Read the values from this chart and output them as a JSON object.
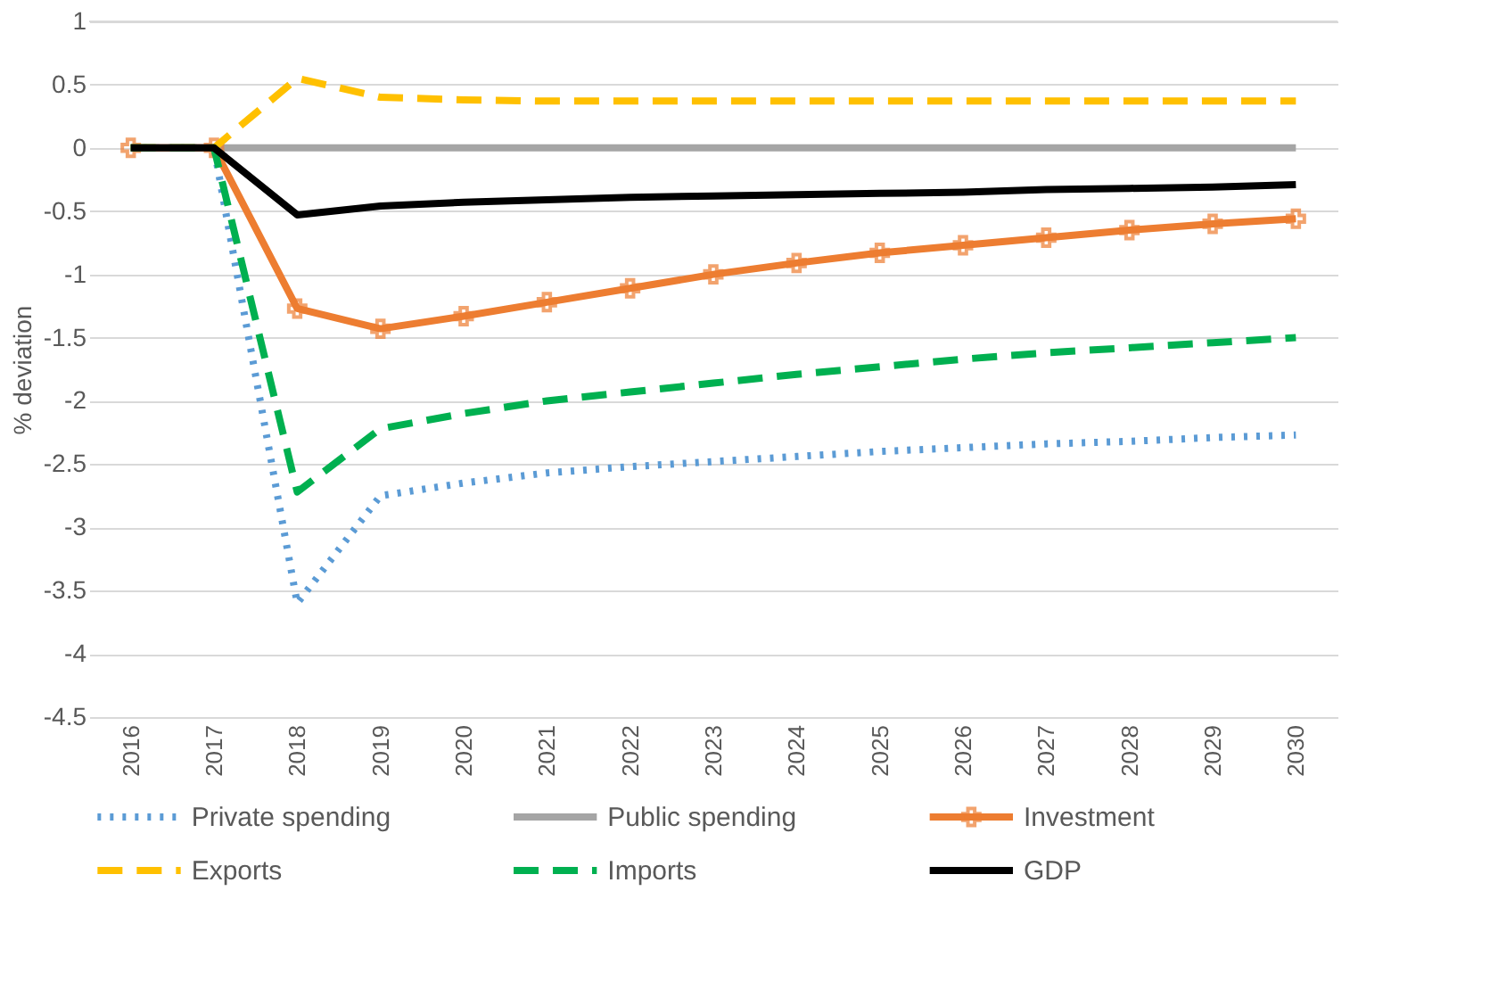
{
  "chart_data": {
    "type": "line",
    "ylabel": "% deviation",
    "categories": [
      "2016",
      "2017",
      "2018",
      "2019",
      "2020",
      "2021",
      "2022",
      "2023",
      "2024",
      "2025",
      "2026",
      "2027",
      "2028",
      "2029",
      "2030"
    ],
    "series": [
      {
        "name": "Private spending",
        "color": "#5b9bd5",
        "line_style": "dotted",
        "values": [
          0,
          0,
          -3.6,
          -2.75,
          -2.65,
          -2.57,
          -2.52,
          -2.48,
          -2.44,
          -2.4,
          -2.37,
          -2.34,
          -2.32,
          -2.29,
          -2.27
        ]
      },
      {
        "name": "Public spending",
        "color": "#a5a5a5",
        "line_style": "solid",
        "values": [
          0,
          0,
          0,
          0,
          0,
          0,
          0,
          0,
          0,
          0,
          0,
          0,
          0,
          0,
          0
        ]
      },
      {
        "name": "Investment",
        "color": "#ed7d31",
        "line_style": "solid",
        "marker": "cross",
        "values": [
          0,
          0,
          -1.27,
          -1.43,
          -1.33,
          -1.22,
          -1.11,
          -1.0,
          -0.91,
          -0.83,
          -0.77,
          -0.71,
          -0.65,
          -0.6,
          -0.56
        ]
      },
      {
        "name": "Exports",
        "color": "#ffc000",
        "line_style": "dashed",
        "values": [
          0,
          0,
          0.55,
          0.4,
          0.38,
          0.37,
          0.37,
          0.37,
          0.37,
          0.37,
          0.37,
          0.37,
          0.37,
          0.37,
          0.37
        ]
      },
      {
        "name": "Imports",
        "color": "#00b050",
        "line_style": "dashed",
        "values": [
          0,
          0,
          -2.72,
          -2.22,
          -2.1,
          -2.0,
          -1.93,
          -1.86,
          -1.79,
          -1.73,
          -1.67,
          -1.62,
          -1.58,
          -1.54,
          -1.5
        ]
      },
      {
        "name": "GDP",
        "color": "#000000",
        "line_style": "solid",
        "values": [
          0,
          0,
          -0.53,
          -0.46,
          -0.43,
          -0.41,
          -0.39,
          -0.38,
          -0.37,
          -0.36,
          -0.35,
          -0.33,
          -0.32,
          -0.31,
          -0.29
        ]
      }
    ],
    "ylim": [
      -4.5,
      1
    ],
    "yticks": [
      -4.5,
      -4,
      -3.5,
      -3,
      -2.5,
      -2,
      -1.5,
      -1,
      -0.5,
      0,
      0.5,
      1
    ],
    "grid": "y",
    "legend": "bottom"
  }
}
